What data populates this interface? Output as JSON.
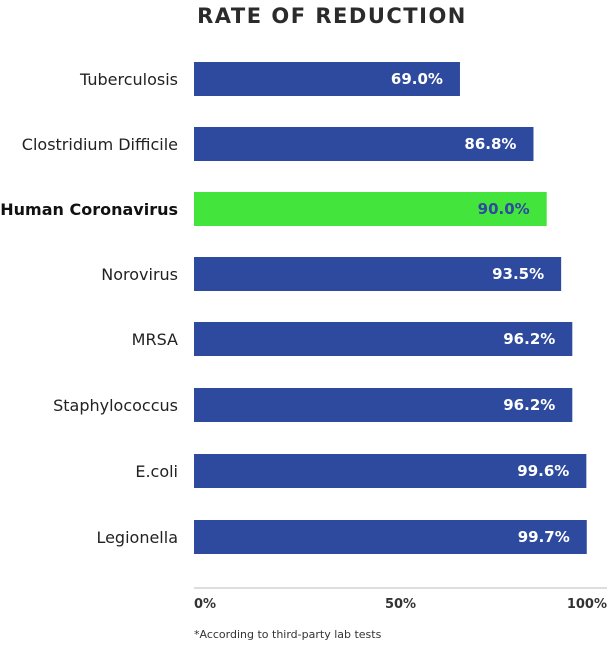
{
  "chart_data": {
    "type": "bar",
    "orientation": "horizontal",
    "title": "RATE OF REDUCTION",
    "categories": [
      "Tuberculosis",
      "Clostridium Difficile",
      "Human Coronavirus",
      "Norovirus",
      "MRSA",
      "Staphylococcus",
      "E.coli",
      "Legionella"
    ],
    "values": [
      69.0,
      86.8,
      90.0,
      93.5,
      96.2,
      96.2,
      99.6,
      99.7
    ],
    "value_labels": [
      "69.0%",
      "86.8%",
      "90.0%",
      "93.5%",
      "96.2%",
      "96.2%",
      "99.6%",
      "99.7%"
    ],
    "highlight_category": "Human Coronavirus",
    "xlim": [
      0,
      100
    ],
    "x_ticks": [
      0,
      50,
      100
    ],
    "x_tick_labels": [
      "0%",
      "50%",
      "100%"
    ],
    "grid": false,
    "legend": "none",
    "colors": {
      "bar": "#2E4A9E",
      "highlight_bar": "#43E53C",
      "highlight_value_text": "#2E4A9E",
      "value_text": "#FFFFFF",
      "axis": "#BBBBBB"
    }
  },
  "footnote": "*According to third-party lab tests"
}
